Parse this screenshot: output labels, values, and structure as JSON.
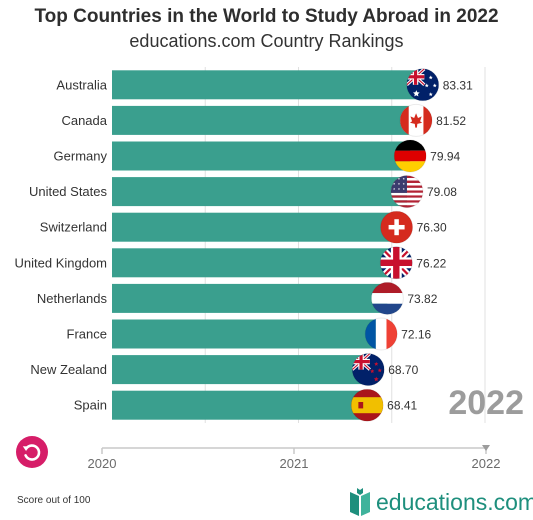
{
  "header": {
    "title": "Top Countries in the World to Study Abroad in 2022",
    "subtitle": "educations.com Country Rankings"
  },
  "chart_data": {
    "type": "bar",
    "orientation": "horizontal",
    "categories": [
      "Australia",
      "Canada",
      "Germany",
      "United States",
      "Switzerland",
      "United Kingdom",
      "Netherlands",
      "France",
      "New Zealand",
      "Spain"
    ],
    "values": [
      83.31,
      81.52,
      79.94,
      79.08,
      76.3,
      76.22,
      73.82,
      72.16,
      68.7,
      68.41
    ],
    "value_labels": [
      "83.31",
      "81.52",
      "79.94",
      "79.08",
      "76.30",
      "76.22",
      "73.82",
      "72.16",
      "68.70",
      "68.41"
    ],
    "xlim": [
      0,
      100
    ],
    "grid": true,
    "bar_color": "#3a9f8e",
    "current_year": "2022",
    "timeline": {
      "labels": [
        "2020",
        "2021",
        "2022"
      ],
      "current": "2022"
    }
  },
  "footer": {
    "note": "Score out of 100",
    "brand": "educations.com"
  },
  "colors": {
    "accent": "#d61d68",
    "brand": "#1e8f7d",
    "grid": "#e0e0e0"
  },
  "icons": {
    "replay": "replay-icon",
    "flags": [
      "australia-flag-icon",
      "canada-flag-icon",
      "germany-flag-icon",
      "united-states-flag-icon",
      "switzerland-flag-icon",
      "united-kingdom-flag-icon",
      "netherlands-flag-icon",
      "france-flag-icon",
      "new-zealand-flag-icon",
      "spain-flag-icon"
    ]
  }
}
